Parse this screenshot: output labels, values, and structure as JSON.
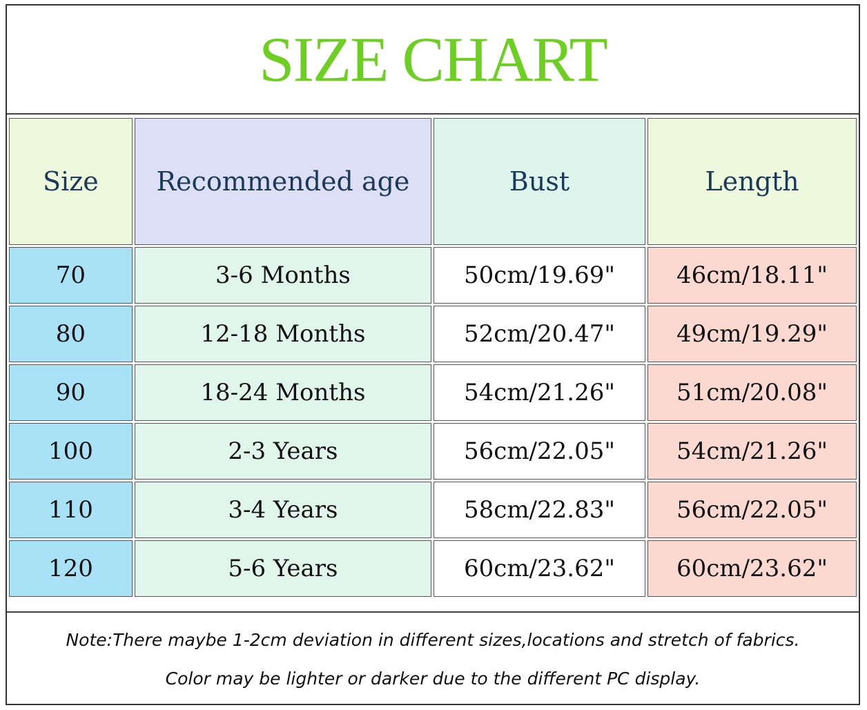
{
  "title": "SIZE CHART",
  "colors": {
    "title": "#6ccf22",
    "size_col": "#a9e1f6",
    "age_col": "#e0f5ec",
    "length_col": "#fbd9d1"
  },
  "headers": [
    "Size",
    "Recommended age",
    "Bust",
    "Length"
  ],
  "rows": [
    {
      "size": "70",
      "age": "3-6 Months",
      "bust": "50cm/19.69\"",
      "length": "46cm/18.11\""
    },
    {
      "size": "80",
      "age": "12-18 Months",
      "bust": "52cm/20.47\"",
      "length": "49cm/19.29\""
    },
    {
      "size": "90",
      "age": "18-24 Months",
      "bust": "54cm/21.26\"",
      "length": "51cm/20.08\""
    },
    {
      "size": "100",
      "age": "2-3 Years",
      "bust": "56cm/22.05\"",
      "length": "54cm/21.26\""
    },
    {
      "size": "110",
      "age": "3-4 Years",
      "bust": "58cm/22.83\"",
      "length": "56cm/22.05\""
    },
    {
      "size": "120",
      "age": "5-6 Years",
      "bust": "60cm/23.62\"",
      "length": "60cm/23.62\""
    }
  ],
  "note": [
    "Note:There maybe 1-2cm deviation in different sizes,locations and stretch of fabrics.",
    "Color may be lighter or darker due to the different PC display."
  ]
}
